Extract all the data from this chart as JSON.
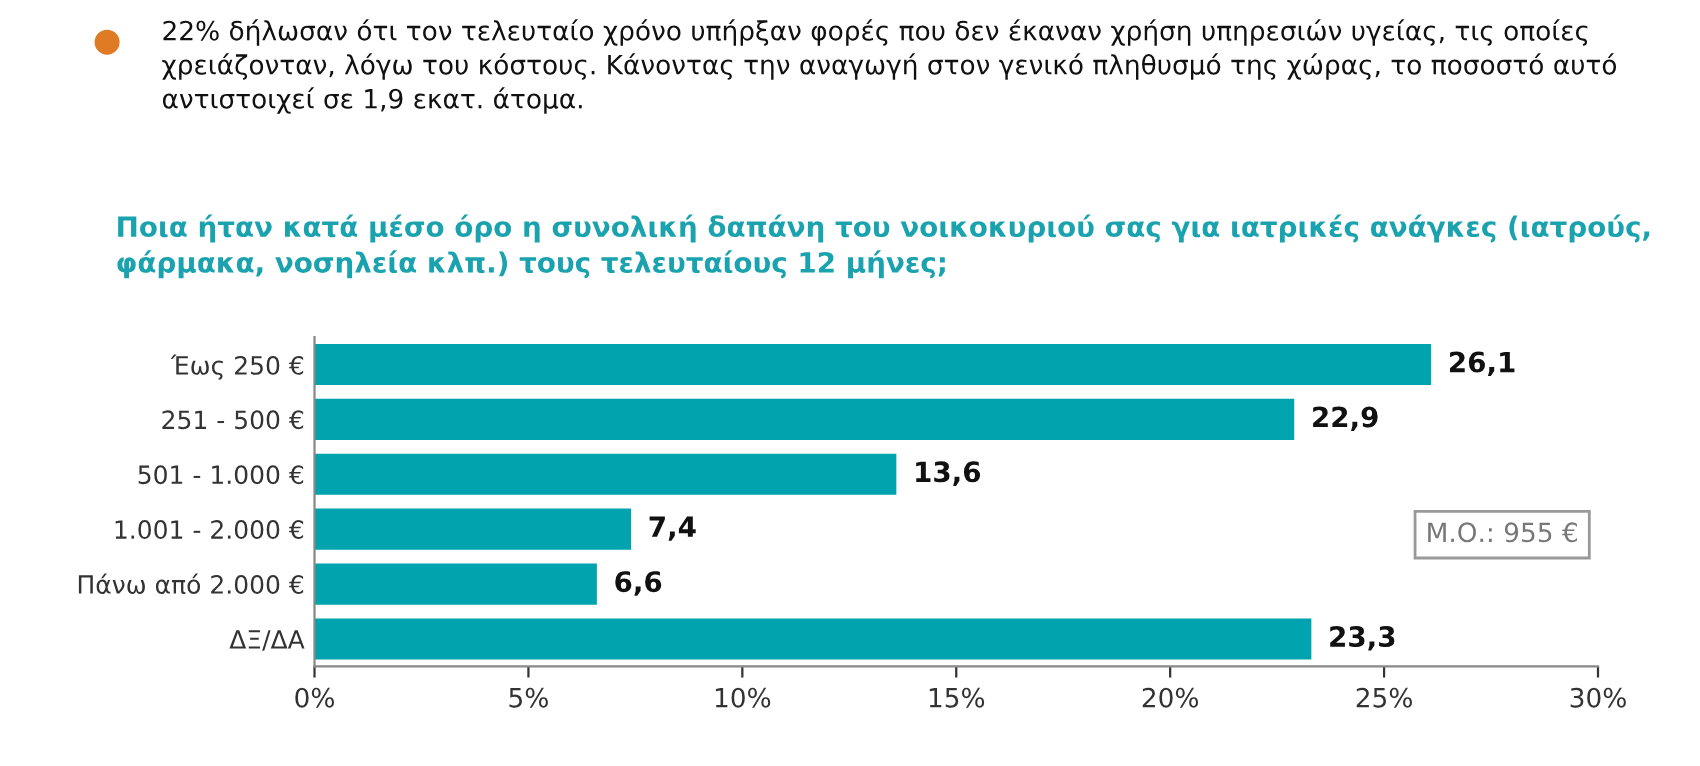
{
  "chart_data": {
    "type": "bar",
    "orientation": "horizontal",
    "subtitle": "22% δήλωσαν ότι τον τελευταίο χρόνο υπήρξαν φορές που δεν έκαναν χρήση υπηρεσιών υγείας, τις οποίες χρειάζονταν, λόγω του κόστους. Κάνοντας την αναγωγή στον γενικό πληθυσμό της χώρας, το ποσοστό αυτό αντιστοιχεί σε 1,9 εκατ. άτομα.",
    "title": "Ποια ήταν κατά μέσο όρο η συνολική δαπάνη του νοικοκυριού σας για ιατρικές ανάγκες (ιατρούς, φάρμακα, νοσηλεία κλπ.) τους τελευταίους 12 μήνες;",
    "categories": [
      "Έως 250 €",
      "251 - 500 €",
      "501 - 1.000 €",
      "1.001 - 2.000 €",
      "Πάνω από 2.000 €",
      "ΔΞ/ΔΑ"
    ],
    "values": [
      26.1,
      22.9,
      13.6,
      7.4,
      6.6,
      23.3
    ],
    "value_labels": [
      "26,1",
      "22,9",
      "13,6",
      "7,4",
      "6,6",
      "23,3"
    ],
    "color": "#00a3ae",
    "xlim": [
      0,
      30
    ],
    "xticks": [
      {
        "value": 0,
        "label": "0%"
      },
      {
        "value": 5,
        "label": "5%"
      },
      {
        "value": 10,
        "label": "10%"
      },
      {
        "value": 15,
        "label": "15%"
      },
      {
        "value": 20,
        "label": "20%"
      },
      {
        "value": 25,
        "label": "25%"
      },
      {
        "value": 30,
        "label": "30%"
      }
    ],
    "annotations": [
      "Μ.Ο.: 955 €"
    ],
    "grid": false,
    "legend": false
  }
}
